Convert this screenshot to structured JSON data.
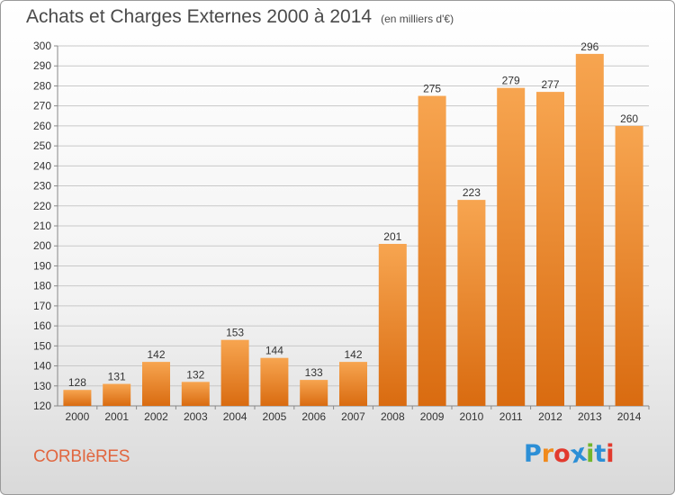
{
  "title": "Achats et Charges Externes 2000 à 2014",
  "subtitle": "(en milliers d'€)",
  "commune": "CORBIèRES",
  "logo": {
    "letters": [
      "P",
      "r",
      "o",
      "x",
      "i",
      "t",
      "i"
    ],
    "colors": [
      "#2c8fd6",
      "#f08a1c",
      "#e23a2e",
      "#2c8fd6",
      "#72b62c",
      "#2c8fd6",
      "#e23a2e"
    ]
  },
  "colors": {
    "bar_top": "#f7a550",
    "bar_bottom": "#d96b10",
    "grid": "#c8c8c8",
    "text": "#333333"
  },
  "chart_data": {
    "type": "bar",
    "categories": [
      "2000",
      "2001",
      "2002",
      "2003",
      "2004",
      "2005",
      "2006",
      "2007",
      "2008",
      "2009",
      "2010",
      "2011",
      "2012",
      "2013",
      "2014"
    ],
    "values": [
      128,
      131,
      142,
      132,
      153,
      144,
      133,
      142,
      201,
      275,
      223,
      279,
      277,
      296,
      260
    ],
    "ylim": [
      120,
      300
    ],
    "yticks": [
      120,
      130,
      140,
      150,
      160,
      170,
      180,
      190,
      200,
      210,
      220,
      230,
      240,
      250,
      260,
      270,
      280,
      290,
      300
    ],
    "grid": true
  }
}
